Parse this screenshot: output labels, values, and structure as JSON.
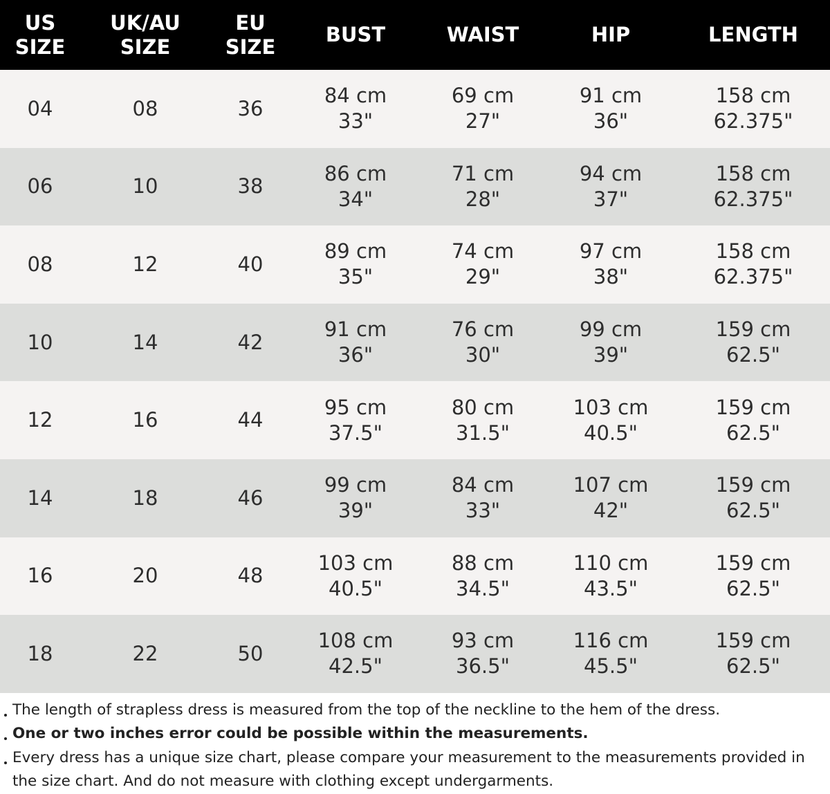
{
  "table": {
    "header": [
      [
        "US",
        "SIZE"
      ],
      [
        "UK/AU",
        "SIZE"
      ],
      [
        "EU",
        "SIZE"
      ],
      [
        "BUST"
      ],
      [
        "WAIST"
      ],
      [
        "HIP"
      ],
      [
        "LENGTH"
      ]
    ],
    "rows": [
      [
        "04",
        "08",
        "36",
        [
          "84 cm",
          "33\""
        ],
        [
          "69 cm",
          "27\""
        ],
        [
          "91 cm",
          "36\""
        ],
        [
          "158 cm",
          "62.375\""
        ]
      ],
      [
        "06",
        "10",
        "38",
        [
          "86 cm",
          "34\""
        ],
        [
          "71 cm",
          "28\""
        ],
        [
          "94 cm",
          "37\""
        ],
        [
          "158 cm",
          "62.375\""
        ]
      ],
      [
        "08",
        "12",
        "40",
        [
          "89 cm",
          "35\""
        ],
        [
          "74 cm",
          "29\""
        ],
        [
          "97 cm",
          "38\""
        ],
        [
          "158 cm",
          "62.375\""
        ]
      ],
      [
        "10",
        "14",
        "42",
        [
          "91 cm",
          "36\""
        ],
        [
          "76 cm",
          "30\""
        ],
        [
          "99 cm",
          "39\""
        ],
        [
          "159 cm",
          "62.5\""
        ]
      ],
      [
        "12",
        "16",
        "44",
        [
          "95 cm",
          "37.5\""
        ],
        [
          "80 cm",
          "31.5\""
        ],
        [
          "103 cm",
          "40.5\""
        ],
        [
          "159 cm",
          "62.5\""
        ]
      ],
      [
        "14",
        "18",
        "46",
        [
          "99 cm",
          "39\""
        ],
        [
          "84 cm",
          "33\""
        ],
        [
          "107 cm",
          "42\""
        ],
        [
          "159 cm",
          "62.5\""
        ]
      ],
      [
        "16",
        "20",
        "48",
        [
          "103 cm",
          "40.5\""
        ],
        [
          "88 cm",
          "34.5\""
        ],
        [
          "110 cm",
          "43.5\""
        ],
        [
          "159 cm",
          "62.5\""
        ]
      ],
      [
        "18",
        "22",
        "50",
        [
          "108 cm",
          "42.5\""
        ],
        [
          "93 cm",
          "36.5\""
        ],
        [
          "116 cm",
          "45.5\""
        ],
        [
          "159 cm",
          "62.5\""
        ]
      ]
    ]
  },
  "notes": [
    "The length of strapless dress is measured from the top of the neckline to the hem of the dress.",
    "One or two inches error could be possible within the measurements.",
    "Every dress has a unique size chart, please compare your measurement to the measurements provided in the size chart. And do not measure with clothing except undergarments."
  ]
}
